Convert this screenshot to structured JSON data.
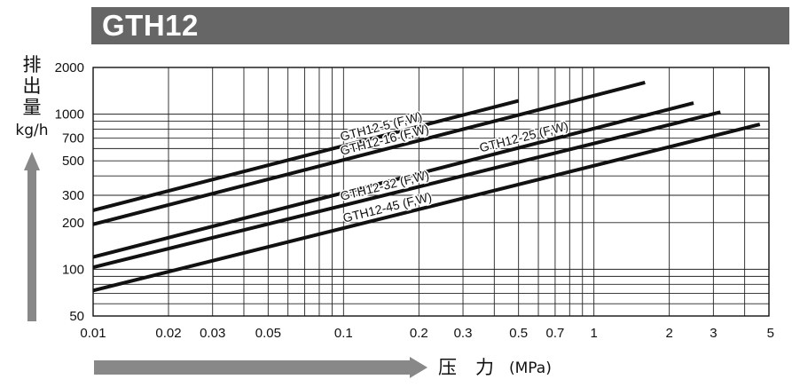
{
  "title": "GTH12",
  "chart_data": {
    "type": "line",
    "title": "GTH12",
    "x_scale": "log",
    "y_scale": "log",
    "xlim": [
      0.01,
      5
    ],
    "ylim": [
      50,
      2000
    ],
    "xlabel": "压　力",
    "xlabel_unit": "(MPa)",
    "ylabel_chars": [
      "排",
      "出",
      "量"
    ],
    "ylabel_unit": "kg/h",
    "x_ticks": [
      {
        "v": 0.01,
        "label": "0.01"
      },
      {
        "v": 0.02,
        "label": "0.02"
      },
      {
        "v": 0.03,
        "label": "0.03"
      },
      {
        "v": 0.05,
        "label": "0.05"
      },
      {
        "v": 0.1,
        "label": "0.1"
      },
      {
        "v": 0.2,
        "label": "0.2"
      },
      {
        "v": 0.3,
        "label": "0.3"
      },
      {
        "v": 0.5,
        "label": "0.5"
      },
      {
        "v": 0.7,
        "label": "0.7"
      },
      {
        "v": 1,
        "label": "1"
      },
      {
        "v": 2,
        "label": "2"
      },
      {
        "v": 3,
        "label": "3"
      },
      {
        "v": 5,
        "label": "5"
      }
    ],
    "y_ticks": [
      {
        "v": 50,
        "label": "50"
      },
      {
        "v": 100,
        "label": "100"
      },
      {
        "v": 200,
        "label": "200"
      },
      {
        "v": 300,
        "label": "300"
      },
      {
        "v": 500,
        "label": "500"
      },
      {
        "v": 700,
        "label": "700"
      },
      {
        "v": 1000,
        "label": "1000"
      },
      {
        "v": 2000,
        "label": "2000"
      }
    ],
    "x_grid": [
      0.01,
      0.02,
      0.03,
      0.04,
      0.05,
      0.06,
      0.07,
      0.08,
      0.09,
      0.1,
      0.2,
      0.3,
      0.4,
      0.5,
      0.6,
      0.7,
      0.8,
      0.9,
      1,
      2,
      3,
      4,
      5
    ],
    "y_grid": [
      50,
      60,
      70,
      80,
      90,
      100,
      200,
      300,
      400,
      500,
      600,
      700,
      800,
      900,
      1000,
      2000
    ],
    "grid": true,
    "series": [
      {
        "name": "GTH12-5 (F,W)",
        "x": [
          0.01,
          0.5
        ],
        "y": [
          240,
          1220
        ]
      },
      {
        "name": "GTH12-16 (F,W)",
        "x": [
          0.01,
          1.6
        ],
        "y": [
          195,
          1600
        ]
      },
      {
        "name": "GTH12-25 (F,W)",
        "x": [
          0.01,
          2.5
        ],
        "y": [
          120,
          1180
        ]
      },
      {
        "name": "GTH12-32 (F,W)",
        "x": [
          0.01,
          3.2
        ],
        "y": [
          103,
          1030
        ]
      },
      {
        "name": "GTH12-45 (F,W)",
        "x": [
          0.01,
          4.6
        ],
        "y": [
          73,
          860
        ]
      }
    ]
  }
}
